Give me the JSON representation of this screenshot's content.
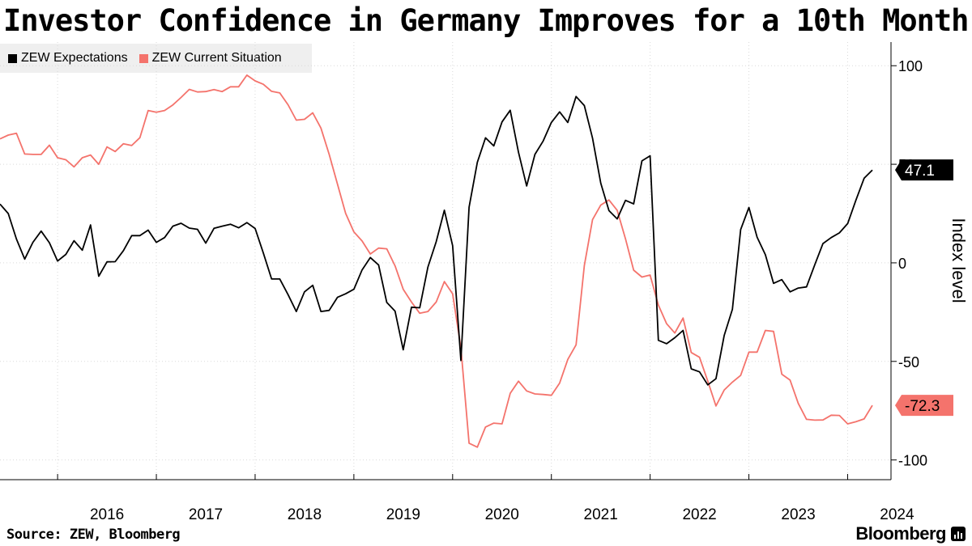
{
  "chart_data": {
    "type": "line",
    "title": "Investor Confidence in Germany Improves for a 10th Month",
    "ylabel": "Index level",
    "xlabel": "",
    "ylim": [
      -110,
      112
    ],
    "yticks": [
      100,
      50,
      0,
      -50,
      -100
    ],
    "ytick_labels": [
      "100",
      "50",
      "0",
      "-50",
      "-100"
    ],
    "xticks": [
      "2016",
      "2017",
      "2018",
      "2019",
      "2020",
      "2021",
      "2022",
      "2023",
      "2024"
    ],
    "x_start": "2015-06",
    "legend": "top-left",
    "series": [
      {
        "name": "ZEW Expectations",
        "color": "#000000",
        "values": [
          29.8,
          25.0,
          12.1,
          1.9,
          10.4,
          16.1,
          10.2,
          0.9,
          4.3,
          11.2,
          6.4,
          19.2,
          -6.8,
          0.5,
          0.6,
          6.2,
          13.8,
          13.8,
          16.6,
          10.4,
          12.8,
          18.6,
          20.1,
          17.6,
          17.0,
          10.0,
          17.5,
          18.6,
          19.6,
          17.8,
          20.4,
          17.4,
          5.0,
          -8.2,
          -8.2,
          -16.1,
          -24.7,
          -14.7,
          -11.4,
          -24.7,
          -24.1,
          -17.5,
          -15.7,
          -13.4,
          -3.6,
          2.7,
          -1.1,
          -20.1,
          -24.5,
          -44.1,
          -22.5,
          -22.8,
          -2.1,
          10.7,
          26.7,
          8.7,
          -49.5,
          28.2,
          51.0,
          63.4,
          59.3,
          71.5,
          77.4,
          56.1,
          39.0,
          55.0,
          61.8,
          71.2,
          76.6,
          71.2,
          84.4,
          79.8,
          63.3,
          40.4,
          26.5,
          22.3,
          31.7,
          29.9,
          51.7,
          54.3,
          -39.3,
          -41.0,
          -38.0,
          -34.3,
          -53.8,
          -55.3,
          -61.9,
          -58.8,
          -36.8,
          -23.6,
          16.9,
          28.1,
          13.0,
          4.1,
          -10.4,
          -8.5,
          -14.7,
          -12.8,
          -12.2,
          -1.1,
          9.8,
          12.8,
          15.2,
          19.9,
          31.7,
          42.9,
          47.1
        ]
      },
      {
        "name": "ZEW Current Situation",
        "color": "#f4736c",
        "values": [
          62.9,
          64.8,
          65.7,
          55.2,
          55.0,
          55.0,
          59.7,
          53.3,
          52.3,
          48.7,
          53.3,
          54.7,
          50.0,
          58.8,
          56.5,
          60.4,
          59.5,
          63.5,
          77.3,
          76.4,
          77.3,
          80.1,
          83.9,
          88.0,
          86.7,
          86.9,
          87.9,
          86.9,
          89.3,
          89.3,
          95.2,
          92.3,
          90.6,
          87.0,
          86.2,
          80.2,
          72.4,
          72.8,
          76.1,
          68.4,
          55.0,
          40.0,
          25.1,
          15.7,
          11.1,
          4.5,
          7.5,
          7.1,
          -1.5,
          -13.4,
          -19.9,
          -25.6,
          -24.7,
          -19.9,
          -9.5,
          -15.7,
          -43.1,
          -91.5,
          -93.5,
          -83.3,
          -81.3,
          -81.7,
          -66.2,
          -60.0,
          -65.0,
          -66.5,
          -66.8,
          -67.2,
          -61.0,
          -49.0,
          -41.6,
          -1.4,
          21.9,
          29.3,
          31.9,
          26.6,
          12.2,
          -3.7,
          -7.2,
          -6.2,
          -21.4,
          -30.9,
          -35.6,
          -28.0,
          -45.5,
          -47.9,
          -60.0,
          -72.6,
          -64.5,
          -60.5,
          -57.1,
          -45.3,
          -45.3,
          -34.3,
          -34.8,
          -56.5,
          -59.5,
          -71.3,
          -79.4,
          -79.8,
          -79.7,
          -77.3,
          -77.4,
          -81.7,
          -80.6,
          -79.2,
          -72.3
        ]
      }
    ],
    "last_value_labels": [
      "47.1",
      "-72.3"
    ]
  },
  "source": "Source: ZEW, Bloomberg",
  "brand": "Bloomberg"
}
